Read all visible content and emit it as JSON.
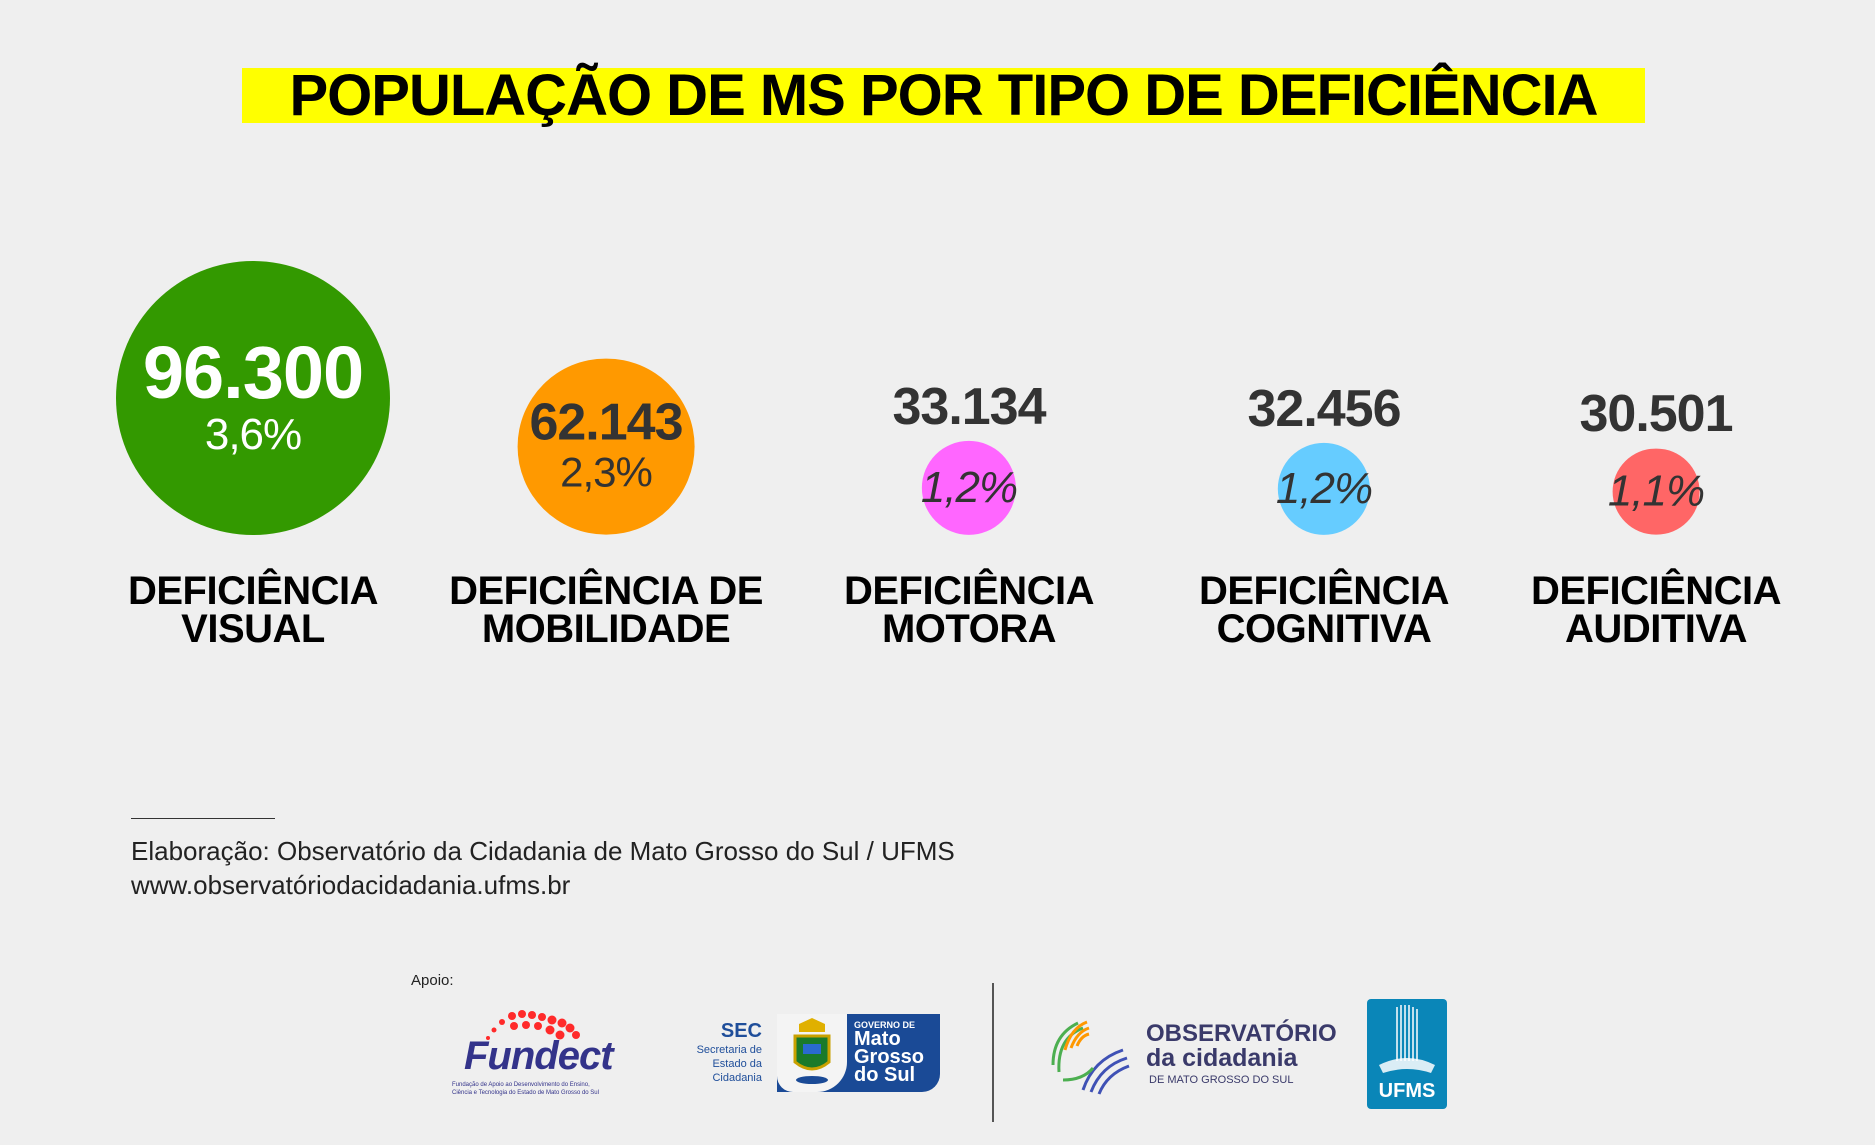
{
  "title": "POPULAÇÃO DE MS POR TIPO DE DEFICIÊNCIA",
  "chart_data": {
    "type": "bubble",
    "title": "POPULAÇÃO DE MS POR TIPO DE DEFICIÊNCIA",
    "categories": [
      "DEFICIÊNCIA VISUAL",
      "DEFICIÊNCIA DE MOBILIDADE",
      "DEFICIÊNCIA MOTORA",
      "DEFICIÊNCIA COGNITIVA",
      "DEFICIÊNCIA AUDITIVA"
    ],
    "items": [
      {
        "label1": "DEFICIÊNCIA",
        "label2": "VISUAL",
        "value": 96300,
        "value_text": "96.300",
        "percent": 3.6,
        "percent_text": "3,6%",
        "color": "#339900"
      },
      {
        "label1": "DEFICIÊNCIA DE",
        "label2": "MOBILIDADE",
        "value": 62143,
        "value_text": "62.143",
        "percent": 2.3,
        "percent_text": "2,3%",
        "color": "#ff9900"
      },
      {
        "label1": "DEFICIÊNCIA",
        "label2": "MOTORA",
        "value": 33134,
        "value_text": "33.134",
        "percent": 1.2,
        "percent_text": "1,2%",
        "color": "#ff66ff"
      },
      {
        "label1": "DEFICIÊNCIA",
        "label2": "COGNITIVA",
        "value": 32456,
        "value_text": "32.456",
        "percent": 1.2,
        "percent_text": "1,2%",
        "color": "#66ccff"
      },
      {
        "label1": "DEFICIÊNCIA",
        "label2": "AUDITIVA",
        "value": 30501,
        "value_text": "30.501",
        "percent": 1.1,
        "percent_text": "1,1%",
        "color": "#ff6666"
      }
    ]
  },
  "footer": {
    "credit": "Elaboração: Observatório da Cidadania de Mato Grosso do Sul / UFMS",
    "url": "www.observatóriodacidadania.ufms.br",
    "support_label": "Apoio:"
  },
  "logos": {
    "fundect": {
      "name": "Fundect",
      "sub1": "Fundação de Apoio ao Desenvolvimento do Ensino,",
      "sub2": "Ciência e Tecnologia do Estado de Mato Grosso do Sul"
    },
    "sec": {
      "abbr": "SEC",
      "line1": "Secretaria de",
      "line2": "Estado da",
      "line3": "Cidadania",
      "gov": "GOVERNO DE",
      "state1": "Mato",
      "state2": "Grosso",
      "state3": "do Sul"
    },
    "observatorio": {
      "line1": "OBSERVATÓRIO",
      "line2": "da cidadania",
      "line3": "DE MATO GROSSO DO SUL"
    },
    "ufms": {
      "name": "UFMS"
    }
  }
}
